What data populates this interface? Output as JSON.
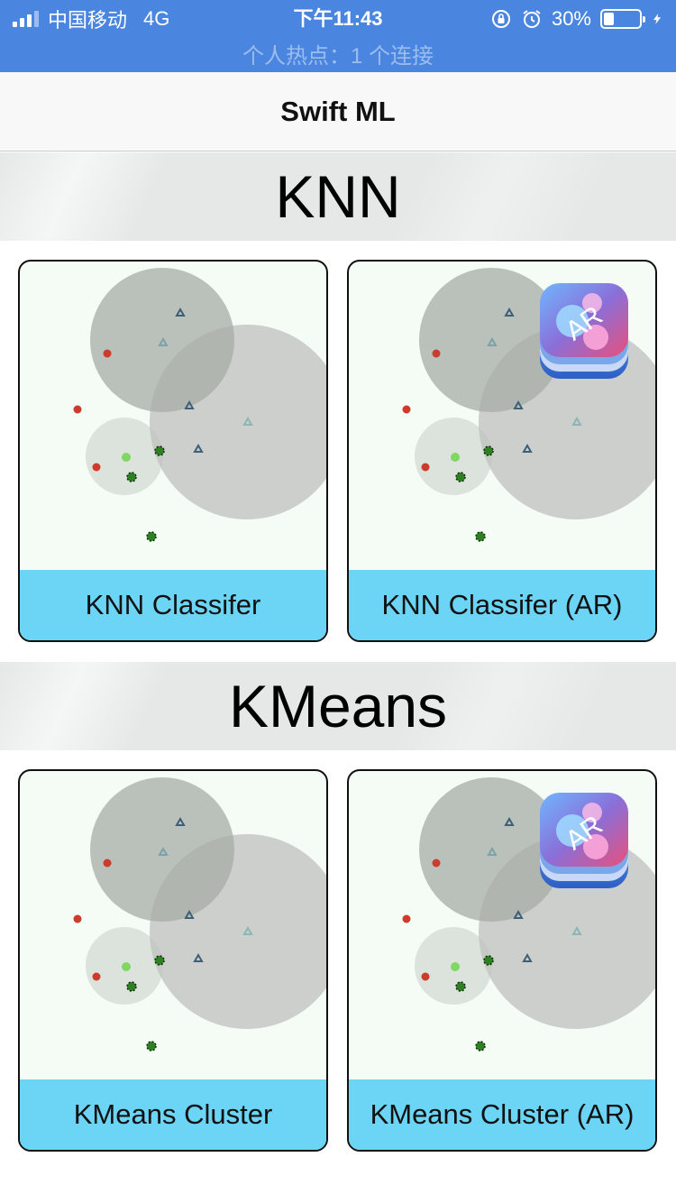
{
  "status_bar": {
    "carrier": "中国移动",
    "network": "4G",
    "time": "下午11:43",
    "battery": "30%",
    "battery_level": 0.3,
    "hotspot": "个人热点：1 个连接",
    "icons": [
      "signal-icon",
      "orientation-lock-icon",
      "alarm-icon",
      "battery-icon",
      "charging-icon"
    ]
  },
  "nav": {
    "title": "Swift ML"
  },
  "sections": [
    {
      "title": "KNN",
      "cards": [
        {
          "label": "KNN Classifer",
          "ar": false
        },
        {
          "label": "KNN Classifer (AR)",
          "ar": true,
          "badge": "AR"
        }
      ]
    },
    {
      "title": "KMeans",
      "cards": [
        {
          "label": "KMeans Cluster",
          "ar": false
        },
        {
          "label": "KMeans Cluster (AR)",
          "ar": true,
          "badge": "AR"
        }
      ]
    }
  ],
  "colors": {
    "status_bar": "#4a86e0",
    "card_label_bg": "#6cd4f5",
    "red_points": "#cc3b2b",
    "green_points": "#3a9a2a",
    "blue_triangles": "#3c6078"
  }
}
